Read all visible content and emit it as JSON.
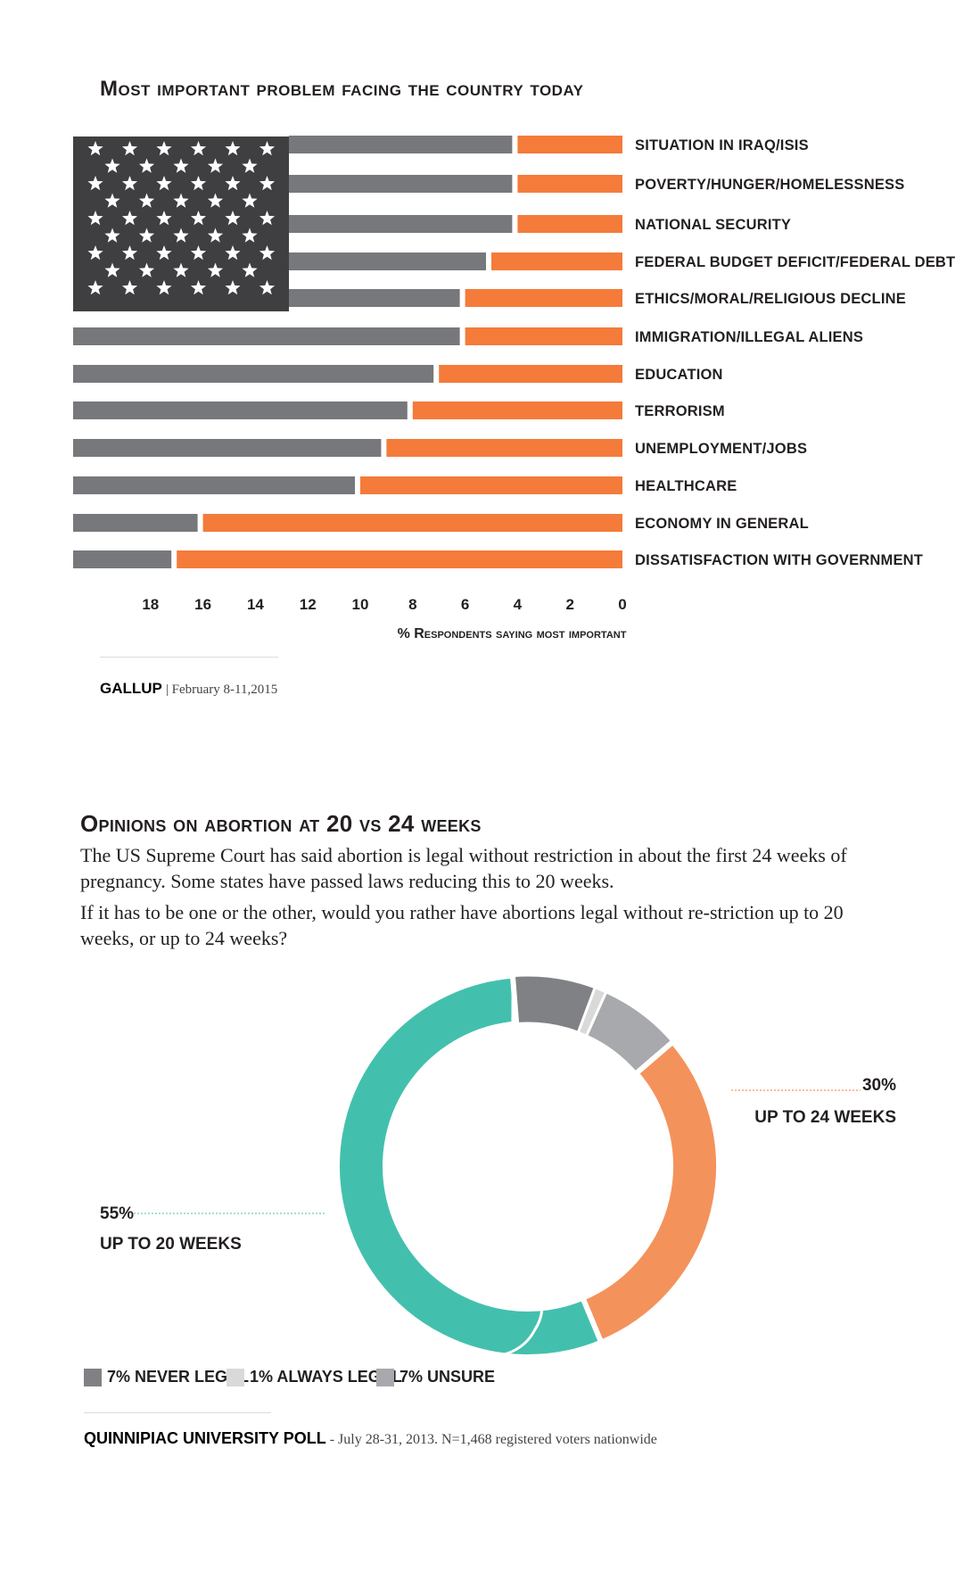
{
  "chart1": {
    "title": "Most important problem facing the country today",
    "axis_title": "% Respondents saying most important",
    "source_name": "GALLUP",
    "source_detail": "| February 8-11,2015",
    "colors": {
      "bar_gray": "#77787b",
      "bar_orange": "#f47b3a",
      "canton": "#3f3f41",
      "star": "#ffffff"
    },
    "chart_data": {
      "type": "bar",
      "orientation": "horizontal",
      "categories": [
        "Situation in Iraq/ISIS",
        "Poverty/Hunger/Homelessness",
        "National security",
        "Federal budget deficit/federal debt",
        "Ethics/moral/religious decline",
        "Immigration/illegal aliens",
        "Education",
        "Terrorism",
        "Unemployment/jobs",
        "Healthcare",
        "Economy in general",
        "Dissatisfaction with government"
      ],
      "values": [
        4,
        4,
        4,
        5,
        6,
        6,
        7,
        8,
        9,
        10,
        16,
        17
      ],
      "xticks": [
        "18",
        "16",
        "14",
        "12",
        "10",
        "8",
        "6",
        "4",
        "2",
        "0"
      ],
      "xlim": [
        0,
        18
      ],
      "xlabel": "% Respondents saying most important",
      "title": "Most important problem facing the country today"
    }
  },
  "chart2": {
    "title": "Opinions on abortion at 20 vs 24 weeks",
    "description_1": "The US Supreme Court has said abortion is legal without restriction in about the first 24 weeks of pregnancy. Some states have passed laws reducing this to 20 weeks.",
    "description_2": "If it has to be one or the other, would you rather have abortions legal without re-striction up to 20 weeks, or up to 24 weeks?",
    "label_20_pct": "55%",
    "label_20_text": "UP TO 20 WEEKS",
    "label_24_pct": "30%",
    "label_24_text": "UP TO 24 WEEKS",
    "legend": [
      {
        "label": "7% NEVER LEGAL",
        "color": "#808184"
      },
      {
        "label": "1% ALWAYS LEGAL",
        "color": "#d9d9d9"
      },
      {
        "label": "7% UNSURE",
        "color": "#a7a9ac"
      }
    ],
    "source_name": "QUINNIPIAC UNIVERSITY POLL",
    "source_detail": " - July 28-31, 2013. N=1,468 registered voters nationwide",
    "colors": {
      "teal": "#43c0ad",
      "orange": "#f4925c",
      "dark_gray": "#808184",
      "light_gray": "#d9d9d9",
      "mid_gray": "#a7a9ac"
    },
    "chart_data": {
      "type": "pie",
      "style": "donut",
      "categories": [
        "Up to 20 weeks",
        "Up to 24 weeks",
        "Never legal",
        "Always legal",
        "Unsure"
      ],
      "values": [
        55,
        30,
        7,
        1,
        7
      ],
      "title": "Opinions on abortion at 20 vs 24 weeks"
    }
  }
}
